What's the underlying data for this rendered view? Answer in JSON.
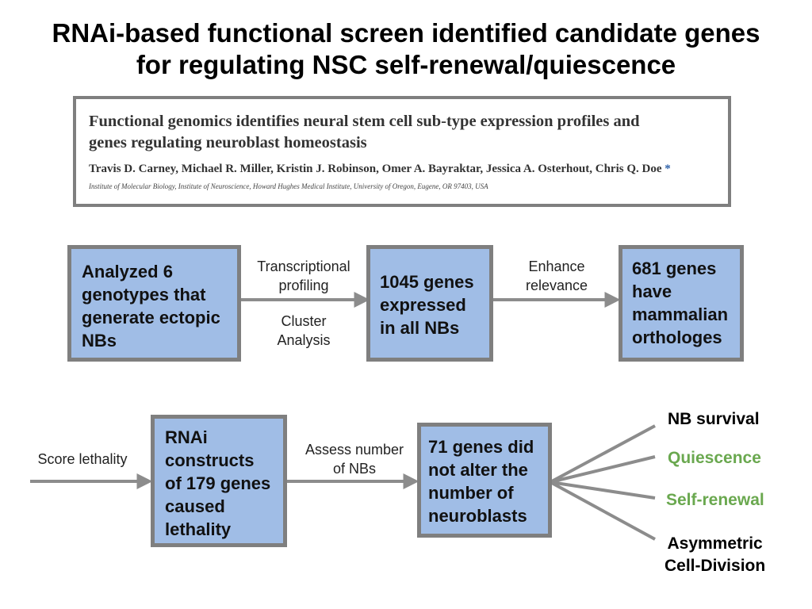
{
  "title": {
    "line1": "RNAi-based functional screen identified candidate genes",
    "line2": "for regulating NSC self-renewal/quiescence"
  },
  "paper": {
    "title_line1": "Functional genomics identifies neural stem cell sub-type expression profiles and",
    "title_line2": "genes regulating neuroblast homeostasis",
    "authors": "Travis D. Carney, Michael R. Miller, Kristin J. Robinson, Omer A. Bayraktar, Jessica A. Osterhout, Chris Q. Doe",
    "author_mark": "*",
    "affiliation": "Institute of Molecular Biology, Institute of Neuroscience, Howard Hughes Medical Institute, University of Oregon, Eugene, OR 97403, USA"
  },
  "row1": {
    "box1": [
      "Analyzed 6",
      "genotypes that",
      "generate ectopic",
      "NBs"
    ],
    "arrow1_top": [
      "Transcriptional",
      "profiling"
    ],
    "arrow1_bottom": [
      "Cluster",
      "Analysis"
    ],
    "box2": [
      "1045 genes",
      "expressed",
      "in all NBs"
    ],
    "arrow2_top": [
      "Enhance",
      "relevance"
    ],
    "box3": [
      "681 genes",
      "have",
      "mammalian",
      "orthologes"
    ]
  },
  "row2": {
    "start_label": "Score lethality",
    "box1": [
      "RNAi",
      "constructs",
      "of 179 genes",
      "caused",
      "lethality"
    ],
    "arrow_label": [
      "Assess number",
      "of NBs"
    ],
    "box2": [
      "71 genes did",
      "not alter the",
      "number of",
      "neuroblasts"
    ]
  },
  "outcomes": {
    "survival": "NB survival",
    "quiescence": "Quiescence",
    "self_renewal": "Self-renewal",
    "asymmetric": [
      "Asymmetric",
      "Cell-Division"
    ]
  },
  "colors": {
    "box_fill": "#a0bde6",
    "border_gray": "#7f7f7f",
    "arrow_gray": "#8c8c8c",
    "highlight_green": "#6aa84f",
    "author_mark": "#2b5fa8"
  }
}
